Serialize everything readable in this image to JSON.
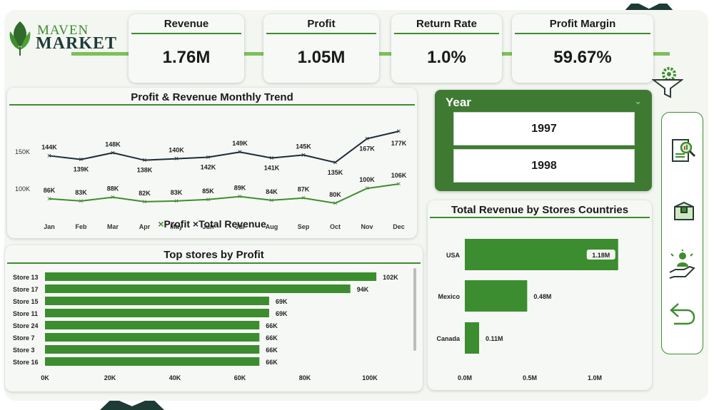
{
  "brand": {
    "line1": "MAVEN",
    "line2": "MARKET"
  },
  "kpis": [
    {
      "title": "Revenue",
      "value": "1.76M"
    },
    {
      "title": "Profit",
      "value": "1.05M"
    },
    {
      "title": "Return Rate",
      "value": "1.0%"
    },
    {
      "title": "Profit Margin",
      "value": "59.67%"
    }
  ],
  "colors": {
    "accent": "#3f8d2f",
    "dark": "#1e3b36",
    "year_panel": "#3f7a33",
    "bar": "#3c8d2f",
    "line_dark": "#1c2b35"
  },
  "year_slicer": {
    "title": "Year",
    "options": [
      "1997",
      "1998"
    ]
  },
  "icons": {
    "filter": "funnel-gear-icon",
    "report": "magnifier-report-icon",
    "box": "box-icon",
    "customer": "hand-person-icon",
    "back": "back-arrow-icon"
  },
  "chart_data": [
    {
      "type": "line",
      "title": "Profit & Revenue Monthly Trend",
      "categories": [
        "Jan",
        "Feb",
        "Mar",
        "Apr",
        "May",
        "Jun",
        "Jul",
        "Aug",
        "Sep",
        "Oct",
        "Nov",
        "Dec"
      ],
      "series": [
        {
          "name": "Total Revenue",
          "values": [
            144,
            139,
            148,
            138,
            140,
            142,
            149,
            141,
            145,
            135,
            167,
            177
          ],
          "labels": [
            "144K",
            "139K",
            "148K",
            "138K",
            "140K",
            "142K",
            "149K",
            "141K",
            "145K",
            "135K",
            "167K",
            "177K"
          ]
        },
        {
          "name": "Profit",
          "values": [
            86,
            83,
            88,
            82,
            83,
            85,
            89,
            84,
            87,
            80,
            100,
            106
          ],
          "labels": [
            "86K",
            "83K",
            "88K",
            "82K",
            "83K",
            "85K",
            "89K",
            "84K",
            "87K",
            "80K",
            "100K",
            "106K"
          ]
        }
      ],
      "yticks": [
        {
          "value": 150,
          "label": "150K"
        },
        {
          "value": 100,
          "label": "100K"
        }
      ],
      "legend": [
        "Profit",
        "Total Revenue"
      ]
    },
    {
      "type": "bar",
      "orientation": "horizontal",
      "title": "Top stores by Profit",
      "categories": [
        "Store 13",
        "Store 17",
        "Store 15",
        "Store 11",
        "Store 24",
        "Store 7",
        "Store 3",
        "Store 16"
      ],
      "values": [
        102,
        94,
        69,
        69,
        66,
        66,
        66,
        66
      ],
      "value_labels": [
        "102K",
        "94K",
        "69K",
        "69K",
        "66K",
        "66K",
        "66K",
        "66K"
      ],
      "xticks": [
        "0K",
        "20K",
        "40K",
        "60K",
        "80K",
        "100K"
      ],
      "xlim": [
        0,
        115
      ]
    },
    {
      "type": "bar",
      "orientation": "horizontal",
      "title": "Total Revenue by Stores Countries",
      "categories": [
        "USA",
        "Mexico",
        "Canada"
      ],
      "values": [
        1.18,
        0.48,
        0.11
      ],
      "value_labels": [
        "1.18M",
        "0.48M",
        "0.11M"
      ],
      "xticks": [
        "0.0M",
        "0.5M",
        "1.0M"
      ],
      "xlim": [
        0,
        1.18
      ]
    }
  ]
}
